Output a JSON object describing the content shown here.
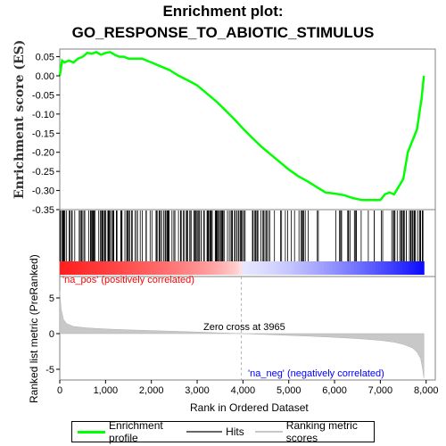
{
  "title_line1": "Enrichment plot:",
  "title_line2": "GO_RESPONSE_TO_ABIOTIC_STIMULUS",
  "colors": {
    "es_line": "#00ff00",
    "hits": "#000000",
    "ranking": "#c8c8c8",
    "pos": "#ff0000",
    "neg": "#0000ff"
  },
  "chart_data": [
    {
      "type": "line",
      "name": "Enrichment profile",
      "ylabel": "Enrichment score (ES)",
      "ylim": [
        -0.35,
        0.07
      ],
      "yticks": [
        "0.05",
        "0.00",
        "-0.05",
        "-0.10",
        "-0.15",
        "-0.20",
        "-0.25",
        "-0.30",
        "-0.35"
      ],
      "xlim": [
        0,
        8200
      ],
      "x": [
        0,
        50,
        100,
        200,
        300,
        400,
        500,
        600,
        700,
        800,
        900,
        1000,
        1100,
        1200,
        1300,
        1400,
        1500,
        1600,
        1700,
        1800,
        1900,
        2000,
        2200,
        2400,
        2600,
        2800,
        3000,
        3200,
        3400,
        3600,
        3800,
        4000,
        4200,
        4400,
        4600,
        4800,
        5000,
        5200,
        5400,
        5600,
        5800,
        6000,
        6200,
        6400,
        6600,
        6800,
        7000,
        7100,
        7200,
        7300,
        7400,
        7500,
        7600,
        7700,
        7800,
        7850,
        7900,
        7950
      ],
      "y": [
        0.0,
        0.04,
        0.035,
        0.04,
        0.035,
        0.045,
        0.05,
        0.06,
        0.058,
        0.062,
        0.055,
        0.06,
        0.062,
        0.055,
        0.05,
        0.05,
        0.045,
        0.045,
        0.045,
        0.045,
        0.04,
        0.035,
        0.025,
        0.015,
        0.0,
        -0.012,
        -0.025,
        -0.045,
        -0.065,
        -0.088,
        -0.112,
        -0.138,
        -0.162,
        -0.185,
        -0.205,
        -0.225,
        -0.245,
        -0.262,
        -0.275,
        -0.29,
        -0.305,
        -0.308,
        -0.312,
        -0.32,
        -0.325,
        -0.325,
        -0.325,
        -0.31,
        -0.305,
        -0.31,
        -0.29,
        -0.27,
        -0.2,
        -0.17,
        -0.14,
        -0.1,
        -0.06,
        0.0
      ]
    },
    {
      "type": "area",
      "name": "Ranking metric scores",
      "ylabel": "Ranked list metric (PreRanked)",
      "xlabel": "Rank in Ordered Dataset",
      "xticks": [
        "0",
        "1,000",
        "2,000",
        "3,000",
        "4,000",
        "5,000",
        "6,000",
        "7,000",
        "8,000"
      ],
      "yticks": [
        "5",
        "0",
        "-5"
      ],
      "ylim": [
        -6.5,
        8
      ],
      "zero_cross_label": "Zero cross at 3965",
      "zero_cross": 3965,
      "pos_label": "'na_pos' (positively correlated)",
      "neg_label": "'na_neg' (negatively correlated)",
      "x": [
        0,
        30,
        80,
        150,
        300,
        600,
        1000,
        1500,
        2000,
        2500,
        3000,
        3500,
        3965,
        4500,
        5000,
        5500,
        6000,
        6500,
        7000,
        7300,
        7500,
        7700,
        7800,
        7880,
        7920,
        7950
      ],
      "y": [
        6.0,
        3.5,
        2.0,
        1.4,
        1.0,
        0.8,
        0.65,
        0.52,
        0.42,
        0.32,
        0.22,
        0.1,
        0.0,
        -0.12,
        -0.25,
        -0.38,
        -0.52,
        -0.7,
        -0.95,
        -1.2,
        -1.5,
        -2.0,
        -2.6,
        -3.5,
        -4.8,
        -6.2
      ]
    }
  ],
  "legend": {
    "items": [
      {
        "label": "Enrichment profile",
        "color": "#00ff00"
      },
      {
        "label": "Hits",
        "color": "#666666"
      },
      {
        "label": "Ranking metric scores",
        "color": "#c8c8c8"
      }
    ]
  }
}
